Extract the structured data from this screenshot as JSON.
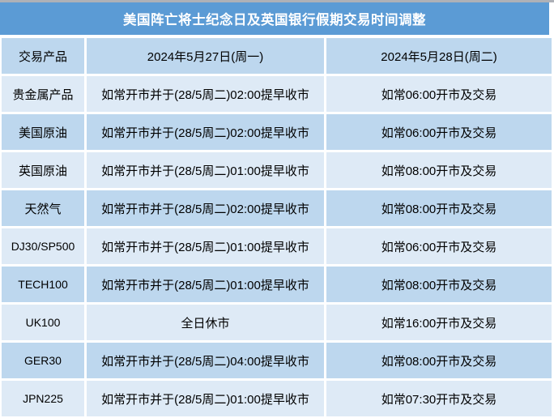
{
  "title": "美国阵亡将士纪念日及英国银行假期交易时间调整",
  "colors": {
    "title_bg": "#5B9BD5",
    "row_dark": "#BDD7EE",
    "row_light": "#DEEAF6",
    "top_strip": "#AEB1B7",
    "title_text": "#FFFFFF",
    "body_text": "#000000"
  },
  "table": {
    "columns": [
      "交易产品",
      "2024年5月27日(周一)",
      "2024年5月28日(周二)"
    ],
    "rows": [
      {
        "product": "贵金属产品",
        "monday": "如常开市并于(28/5周二)02:00提早收市",
        "tuesday": "如常06:00开市及交易"
      },
      {
        "product": "美国原油",
        "monday": "如常开市并于(28/5周二)02:00提早收市",
        "tuesday": "如常06:00开市及交易"
      },
      {
        "product": "英国原油",
        "monday": "如常开市并于(28/5周二)01:00提早收市",
        "tuesday": "如常08:00开市及交易"
      },
      {
        "product": "天然气",
        "monday": "如常开市并于(28/5周二)02:00提早收市",
        "tuesday": "如常08:00开市及交易"
      },
      {
        "product": "DJ30/SP500",
        "monday": "如常开市并于(28/5周二)01:00提早收市",
        "tuesday": "如常06:00开市及交易"
      },
      {
        "product": "TECH100",
        "monday": "如常开市并于(28/5周二)01:00提早收市",
        "tuesday": "如常08:00开市及交易"
      },
      {
        "product": "UK100",
        "monday": "全日休市",
        "tuesday": "如常16:00开市及交易"
      },
      {
        "product": "GER30",
        "monday": "如常开市并于(28/5周二)04:00提早收市",
        "tuesday": "如常08:00开市及交易"
      },
      {
        "product": "JPN225",
        "monday": "如常开市并于(28/5周二)01:00提早收市",
        "tuesday": "如常07:30开市及交易"
      }
    ]
  }
}
